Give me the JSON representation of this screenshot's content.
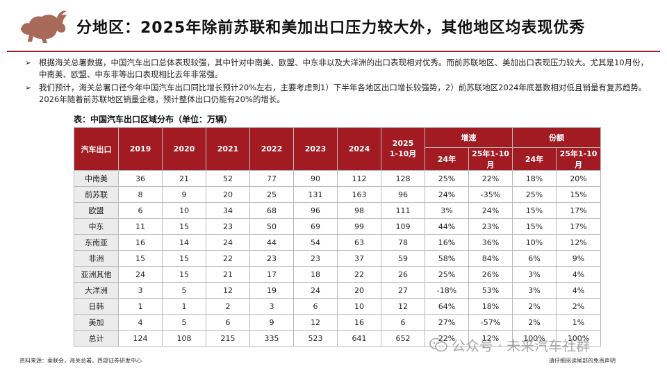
{
  "header": {
    "title": "分地区：2025年除前苏联和美加出口压力较大外，其他地区均表现优秀"
  },
  "bullets": [
    "根据海关总署数据，中国汽车出口总体表现较强，其中针对中南美、欧盟、中东非以及大洋洲的出口表现相对优秀。而前苏联地区、美加出口表现压力较大。尤其是10月份，中南美、欧盟、中东非等出口表现相比去年非常强。",
    "我们预计，海关总署口径今年中国汽车出口同比增长预计20%左右，主要考虑到1）下半年各地区出口增长较强势，2）前苏联地区2024年底基数相对低且销量有复苏趋势。2026年随着前苏联地区销量企稳，预计整体出口仍能有20%的增长。"
  ],
  "table": {
    "caption": "表：中国汽车出口区域分布（单位：万辆）",
    "row_header": "汽车出口",
    "years": [
      "2019",
      "2020",
      "2021",
      "2022",
      "2023",
      "2024"
    ],
    "ytd_line1": "2025",
    "ytd_line2": "1-10月",
    "growth_header": "增速",
    "share_header": "份额",
    "sub_24": "24年",
    "sub_25": "25年1-10月",
    "rows": [
      {
        "region": "中南美",
        "v": [
          "36",
          "21",
          "52",
          "77",
          "90",
          "112",
          "128"
        ],
        "g24": "25%",
        "g25": "22%",
        "s24": "18%",
        "s25": "20%"
      },
      {
        "region": "前苏联",
        "v": [
          "8",
          "9",
          "20",
          "25",
          "131",
          "163",
          "96"
        ],
        "g24": "24%",
        "g25": "-35%",
        "s24": "25%",
        "s25": "15%"
      },
      {
        "region": "欧盟",
        "v": [
          "6",
          "10",
          "34",
          "68",
          "96",
          "98",
          "111"
        ],
        "g24": "3%",
        "g25": "24%",
        "s24": "15%",
        "s25": "17%"
      },
      {
        "region": "中东",
        "v": [
          "11",
          "15",
          "23",
          "50",
          "69",
          "99",
          "109"
        ],
        "g24": "44%",
        "g25": "23%",
        "s24": "15%",
        "s25": "17%"
      },
      {
        "region": "东南亚",
        "v": [
          "16",
          "14",
          "24",
          "44",
          "54",
          "63",
          "78"
        ],
        "g24": "16%",
        "g25": "36%",
        "s24": "10%",
        "s25": "12%"
      },
      {
        "region": "非洲",
        "v": [
          "15",
          "15",
          "22",
          "23",
          "23",
          "37",
          "59"
        ],
        "g24": "58%",
        "g25": "84%",
        "s24": "6%",
        "s25": "9%"
      },
      {
        "region": "亚洲其他",
        "v": [
          "24",
          "15",
          "21",
          "17",
          "18",
          "22",
          "26"
        ],
        "g24": "25%",
        "g25": "26%",
        "s24": "3%",
        "s25": "4%"
      },
      {
        "region": "大洋洲",
        "v": [
          "3",
          "5",
          "12",
          "19",
          "24",
          "20",
          "27"
        ],
        "g24": "-18%",
        "g25": "53%",
        "s24": "3%",
        "s25": "4%"
      },
      {
        "region": "日韩",
        "v": [
          "1",
          "1",
          "2",
          "3",
          "6",
          "10",
          "12"
        ],
        "g24": "64%",
        "g25": "18%",
        "s24": "2%",
        "s25": "2%"
      },
      {
        "region": "美加",
        "v": [
          "4",
          "5",
          "6",
          "9",
          "12",
          "16",
          "6"
        ],
        "g24": "27%",
        "g25": "-57%",
        "s24": "2%",
        "s25": "1%"
      },
      {
        "region": "总计",
        "v": [
          "124",
          "108",
          "215",
          "335",
          "523",
          "641",
          "652"
        ],
        "g24": "22%",
        "g25": "12%",
        "s24": "100%",
        "s25": "100%"
      }
    ]
  },
  "footer": {
    "source": "资料来源：乘联会，海关总署，西部证券研发中心",
    "disclaimer": "请仔细阅读尾部的免责声明",
    "watermark": "公众号 · 未来汽车社群"
  },
  "icons": {
    "logo": "bull-logo-icon",
    "bullet": "arrow-bullet-icon",
    "watermark": "wechat-icon"
  },
  "colors": {
    "accent": "#a31b22",
    "logo": "#a8685a",
    "row_label_bg": "#ececec"
  }
}
